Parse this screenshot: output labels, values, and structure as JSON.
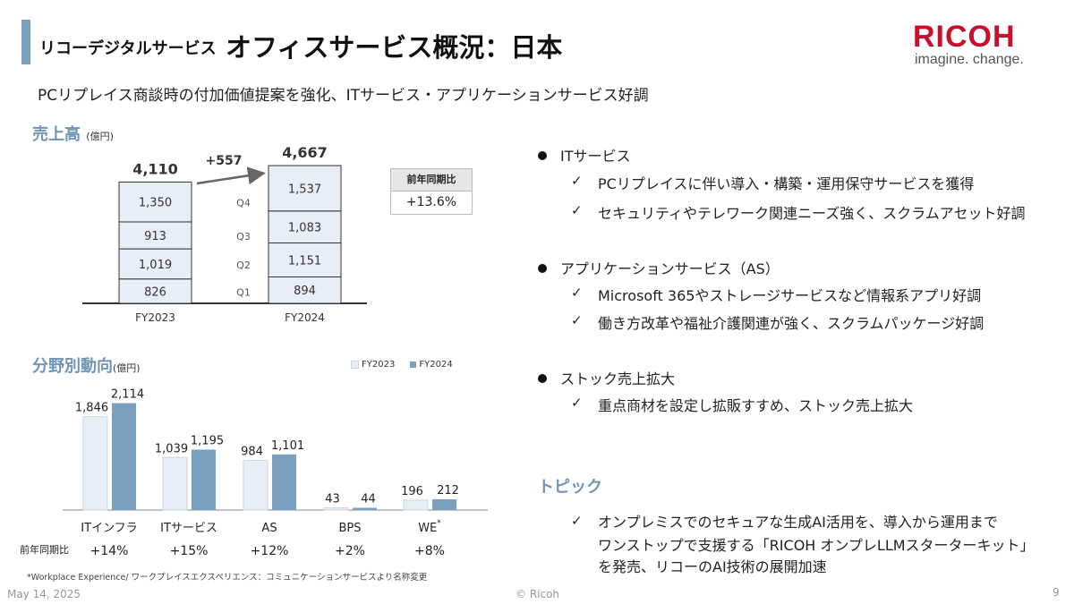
{
  "header": {
    "subtitle_small": "リコーデジタルサービス",
    "title": "オフィスサービス概況：日本",
    "logo": "RICOH",
    "logo_tagline": "imagine. change.",
    "lead": "PCリプレイス商談時の付加価値提案を強化、ITサービス・アプリケーションサービス好調"
  },
  "sales": {
    "heading": "売上高",
    "unit": "(億円)",
    "yoy_label": "前年同期比",
    "yoy_value": "+13.6%"
  },
  "segments": {
    "heading": "分野別動向",
    "unit": "(億円)",
    "yoy_row_label": "前年同期比",
    "footnote": "*Workplace Experience/ ワークプレイスエクスペリエンス：コミュニケーションサービスより名称変更"
  },
  "chart_data": [
    {
      "type": "bar",
      "stacked": true,
      "categories": [
        "FY2023",
        "FY2024"
      ],
      "segment_labels": [
        "Q1",
        "Q2",
        "Q3",
        "Q4"
      ],
      "series": [
        {
          "name": "Q1",
          "values": [
            826,
            894
          ],
          "labels": [
            "826",
            "894"
          ]
        },
        {
          "name": "Q2",
          "values": [
            1019,
            1151
          ],
          "labels": [
            "1,019",
            "1,151"
          ]
        },
        {
          "name": "Q3",
          "values": [
            913,
            1083
          ],
          "labels": [
            "913",
            "1,083"
          ]
        },
        {
          "name": "Q4",
          "values": [
            1350,
            1537
          ],
          "labels": [
            "1,350",
            "1,537"
          ]
        }
      ],
      "totals": [
        "4,110",
        "4,667"
      ],
      "change": "+557",
      "color_fill": "#e8eef5",
      "color_border": "#333333"
    },
    {
      "type": "bar",
      "categories": [
        "ITインフラ",
        "ITサービス",
        "AS",
        "BPS",
        "WE"
      ],
      "category_note": [
        "",
        "",
        "",
        "",
        "*"
      ],
      "series": [
        {
          "name": "FY2023",
          "values": [
            1846,
            1039,
            984,
            43,
            196
          ],
          "labels": [
            "1,846",
            "1,039",
            "984",
            "43",
            "196"
          ],
          "color": "#e8eef5"
        },
        {
          "name": "FY2024",
          "values": [
            2114,
            1195,
            1101,
            44,
            212
          ],
          "labels": [
            "2,114",
            "1,195",
            "1,101",
            "44",
            "212"
          ],
          "color": "#7aa0bf"
        }
      ],
      "yoy": [
        "+14%",
        "+15%",
        "+12%",
        "+2%",
        "+8%"
      ],
      "legend_position": "top-right"
    }
  ],
  "bullets": [
    {
      "title": "ITサービス",
      "items": [
        "PCリプレイスに伴い導入・構築・運用保守サービスを獲得",
        "セキュリティやテレワーク関連ニーズ強く、スクラムアセット好調"
      ]
    },
    {
      "title": "アプリケーションサービス（AS）",
      "items": [
        "Microsoft 365やストレージサービスなど情報系アプリ好調",
        "働き方改革や福祉介護関連が強く、スクラムパッケージ好調"
      ]
    },
    {
      "title": "ストック売上拡大",
      "items": [
        "重点商材を設定し拡販すすめ、ストック売上拡大"
      ]
    }
  ],
  "topic": {
    "heading": "トピック",
    "lines": [
      "オンプレミスでのセキュアな生成AI活用を、導入から運用まで",
      "ワンストップで支援する「RICOH オンプレLLMスターターキット」",
      "を発売、リコーのAI技術の展開加速"
    ]
  },
  "footer": {
    "date": "May 14, 2025",
    "copyright": "© Ricoh",
    "page": "9"
  }
}
